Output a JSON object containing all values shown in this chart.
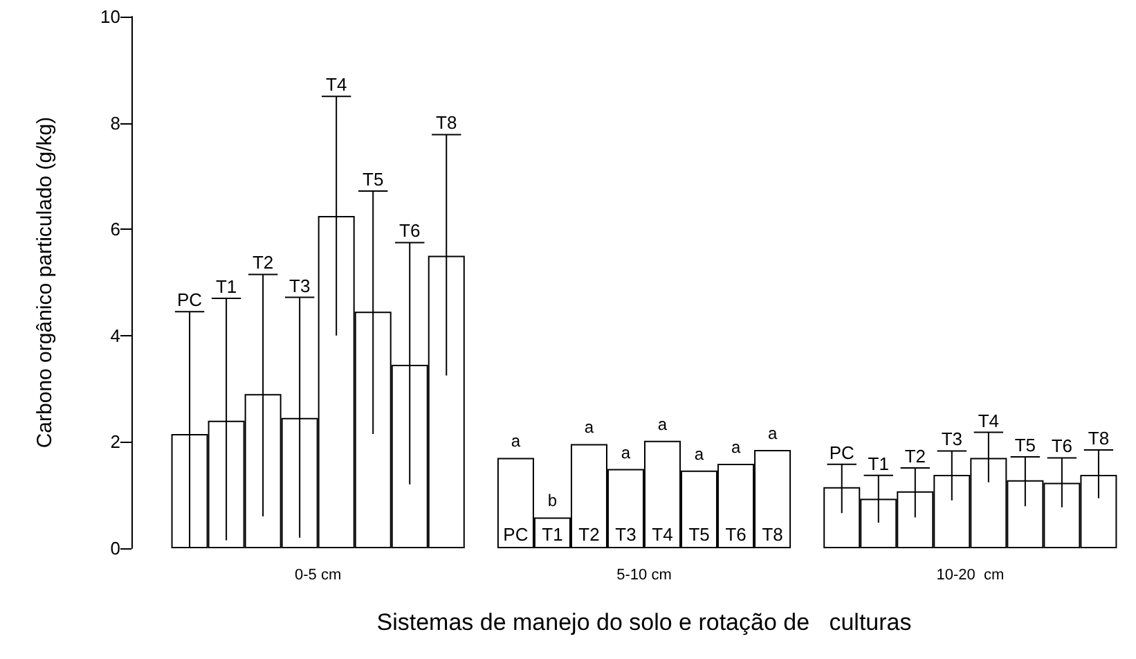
{
  "chart_data": {
    "type": "bar",
    "xlabel": "Sistemas de manejo do solo e rotação de   culturas",
    "ylabel": "Carbono orgânico particulado (g/kg)",
    "categories": [
      "0-5 cm",
      "5-10 cm",
      "10-20  cm"
    ],
    "ylim": [
      0,
      10
    ],
    "yticks": [
      0,
      2,
      4,
      6,
      8,
      10
    ],
    "grid": false,
    "legend": false,
    "series": [
      {
        "name": "PC",
        "color": "#ffffff",
        "values": [
          2.15,
          1.7,
          1.15
        ],
        "errors": [
          [
            0.0,
            4.45
          ],
          null,
          [
            0.66,
            1.58
          ]
        ],
        "value_labels": [
          null,
          "a",
          null
        ]
      },
      {
        "name": "T1",
        "color": "#ffffff",
        "values": [
          2.4,
          0.58,
          0.93
        ],
        "errors": [
          [
            0.15,
            4.7
          ],
          null,
          [
            0.48,
            1.37
          ]
        ],
        "value_labels": [
          null,
          "b",
          null
        ]
      },
      {
        "name": "T2",
        "color": "#ffffff",
        "values": [
          2.9,
          1.96,
          1.07
        ],
        "errors": [
          [
            0.6,
            5.15
          ],
          null,
          [
            0.58,
            1.51
          ]
        ],
        "value_labels": [
          null,
          "a",
          null
        ]
      },
      {
        "name": "T3",
        "color": "#ffffff",
        "values": [
          2.45,
          1.49,
          1.38
        ],
        "errors": [
          [
            0.2,
            4.72
          ],
          null,
          [
            0.9,
            1.83
          ]
        ],
        "value_labels": [
          null,
          "a",
          null
        ]
      },
      {
        "name": "T4",
        "color": "#ffffff",
        "values": [
          6.25,
          2.02,
          1.7
        ],
        "errors": [
          [
            4.0,
            8.5
          ],
          null,
          [
            1.24,
            2.18
          ]
        ],
        "value_labels": [
          null,
          "a",
          null
        ]
      },
      {
        "name": "T5",
        "color": "#ffffff",
        "values": [
          4.45,
          1.46,
          1.28
        ],
        "errors": [
          [
            2.15,
            6.72
          ],
          null,
          [
            0.79,
            1.72
          ]
        ],
        "value_labels": [
          null,
          "a",
          null
        ]
      },
      {
        "name": "T6",
        "color": "#ffffff",
        "values": [
          3.45,
          1.59,
          1.23
        ],
        "errors": [
          [
            1.2,
            5.75
          ],
          null,
          [
            0.77,
            1.7
          ]
        ],
        "value_labels": [
          null,
          "a",
          null
        ]
      },
      {
        "name": "T8",
        "color": "#ffffff",
        "values": [
          5.5,
          1.85,
          1.38
        ],
        "errors": [
          [
            3.25,
            7.78
          ],
          null,
          [
            0.94,
            1.85
          ]
        ],
        "value_labels": [
          null,
          "a",
          null
        ]
      }
    ]
  }
}
